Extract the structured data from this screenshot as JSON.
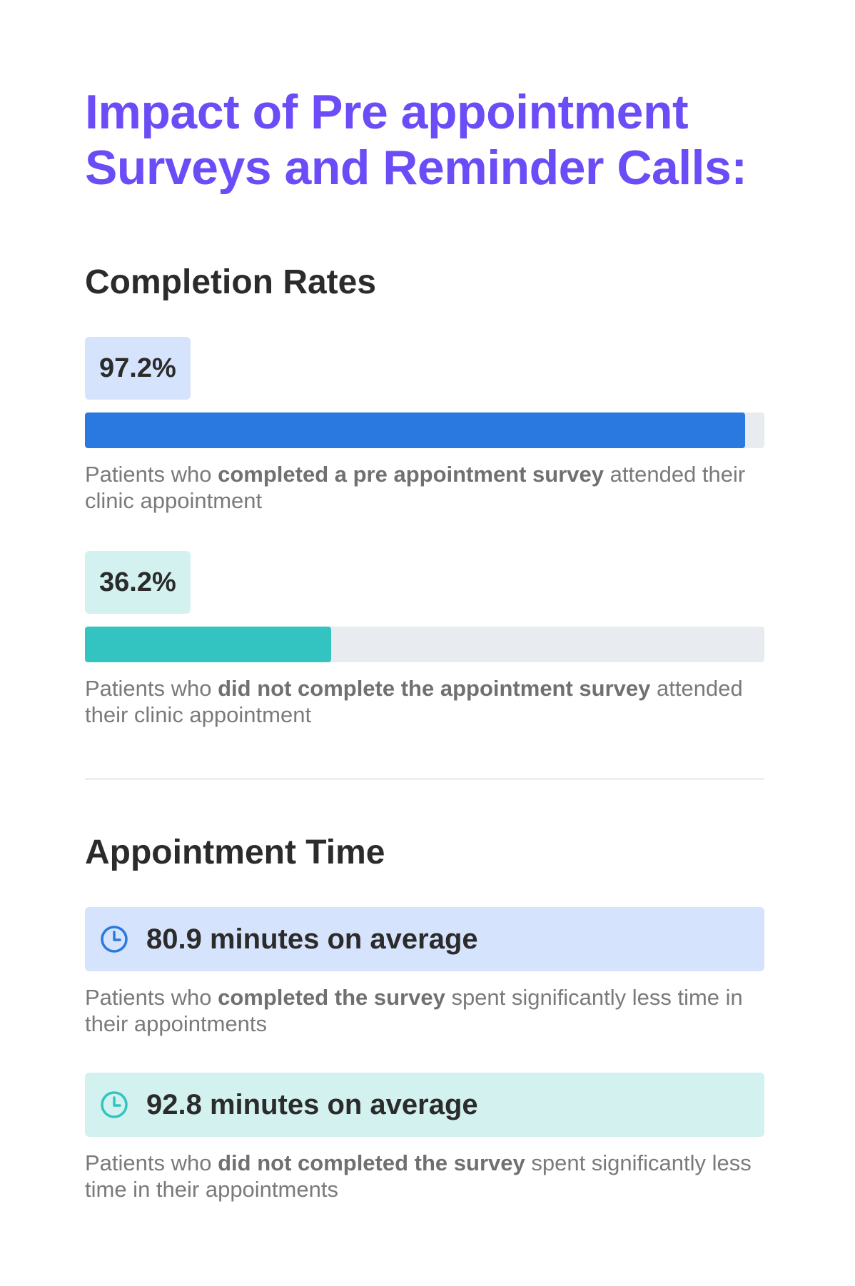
{
  "title": "Impact of Pre appointment Surveys and Reminder Calls:",
  "completion": {
    "heading": "Completion Rates",
    "stats": [
      {
        "value_label": "97.2%",
        "value": 97.2,
        "color": "#2979e0",
        "badge_color": "#d6e3fc",
        "desc_pre": "Patients who ",
        "desc_bold": "completed a pre appointment survey",
        "desc_post": " attended their clinic appointment"
      },
      {
        "value_label": "36.2%",
        "value": 36.2,
        "color": "#33c4c1",
        "badge_color": "#d2f1ef",
        "desc_pre": "Patients who ",
        "desc_bold": "did not complete the appointment survey",
        "desc_post": " attended their clinic appointment"
      }
    ]
  },
  "appointment_time": {
    "heading": "Appointment Time",
    "items": [
      {
        "icon": "clock-icon",
        "color": "#2979e0",
        "label": "80.9 minutes on average",
        "desc_pre": "Patients who ",
        "desc_bold": "completed the survey",
        "desc_post": " spent significantly less time in their appointments"
      },
      {
        "icon": "clock-icon",
        "color": "#33c4c1",
        "label": "92.8 minutes on average",
        "desc_pre": "Patients who ",
        "desc_bold": "did not completed the survey",
        "desc_post": " spent significantly less time in their appointments"
      }
    ]
  }
}
